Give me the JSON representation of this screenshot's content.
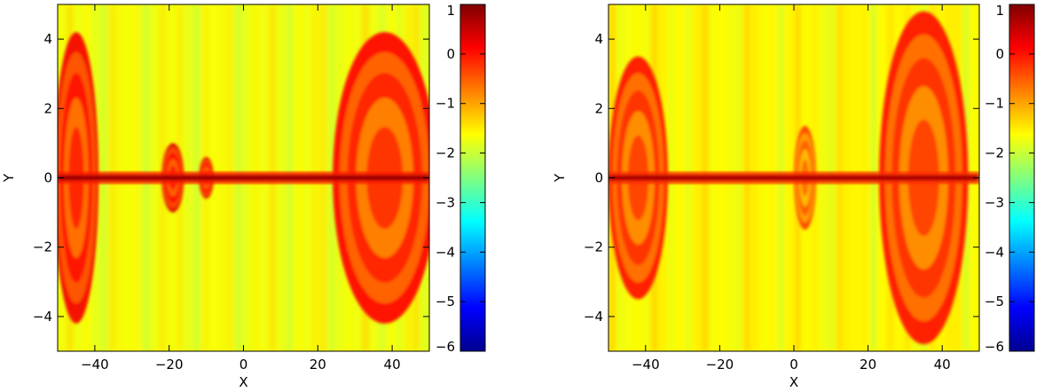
{
  "chart_data": [
    {
      "type": "heatmap",
      "title": "",
      "xlabel": "X",
      "ylabel": "Y",
      "xlim": [
        -50,
        50
      ],
      "ylim": [
        -5,
        5
      ],
      "x_ticks": [
        -40,
        -20,
        0,
        20,
        40
      ],
      "y_ticks": [
        -4,
        -2,
        0,
        2,
        4
      ],
      "colorbar": {
        "range": [
          -6,
          1
        ],
        "ticks": [
          1,
          0,
          -1,
          -2,
          -3,
          -4,
          -5,
          -6
        ],
        "colormap": "jet"
      },
      "features": {
        "background_level": -1.7,
        "current_sheet_level": 0.8,
        "plasmoids": [
          {
            "x_center": -45,
            "y_halfwidth": 4.2,
            "x_halfwidth": 6,
            "level": 0.2
          },
          {
            "x_center": 38,
            "y_halfwidth": 4.2,
            "x_halfwidth": 14,
            "level": 0.1
          },
          {
            "x_center": -19,
            "y_halfwidth": 1.0,
            "x_halfwidth": 3,
            "level": 0.3
          },
          {
            "x_center": -10,
            "y_halfwidth": 0.6,
            "x_halfwidth": 2,
            "level": 0.3
          }
        ]
      }
    },
    {
      "type": "heatmap",
      "title": "",
      "xlabel": "X",
      "ylabel": "Y",
      "xlim": [
        -50,
        50
      ],
      "ylim": [
        -5,
        5
      ],
      "x_ticks": [
        -40,
        -20,
        0,
        20,
        40
      ],
      "y_ticks": [
        -4,
        -2,
        0,
        2,
        4
      ],
      "colorbar": {
        "range": [
          -6,
          1
        ],
        "ticks": [
          1,
          0,
          -1,
          -2,
          -3,
          -4,
          -5,
          -6
        ],
        "colormap": "jet"
      },
      "features": {
        "background_level": -1.6,
        "current_sheet_level": 0.7,
        "plasmoids": [
          {
            "x_center": -42,
            "y_halfwidth": 3.5,
            "x_halfwidth": 8,
            "level": 0.0
          },
          {
            "x_center": 35,
            "y_halfwidth": 4.8,
            "x_halfwidth": 12,
            "level": 0.0
          },
          {
            "x_center": 3,
            "y_halfwidth": 1.5,
            "x_halfwidth": 3,
            "level": -0.3
          }
        ]
      }
    }
  ]
}
